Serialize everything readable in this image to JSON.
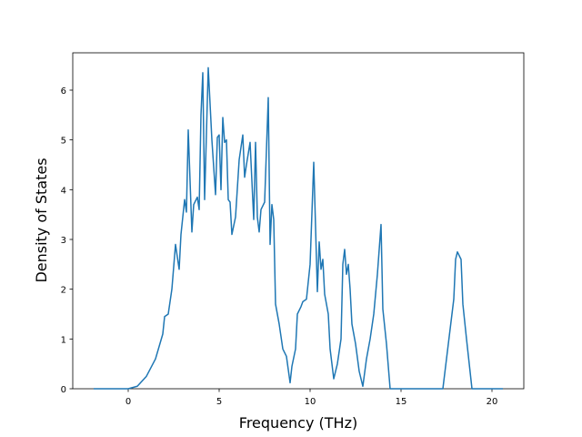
{
  "chart_data": {
    "type": "line",
    "xlabel": "Frequency (THz)",
    "ylabel": "Density of States",
    "x": [
      -1.9,
      0,
      0.5,
      1,
      1.5,
      1.9,
      2.0,
      2.2,
      2.4,
      2.6,
      2.8,
      2.9,
      3.1,
      3.2,
      3.3,
      3.5,
      3.6,
      3.8,
      3.9,
      4.0,
      4.1,
      4.2,
      4.4,
      4.6,
      4.8,
      4.9,
      5.0,
      5.1,
      5.2,
      5.3,
      5.4,
      5.5,
      5.6,
      5.7,
      5.9,
      6.1,
      6.3,
      6.4,
      6.5,
      6.7,
      6.9,
      7.0,
      7.1,
      7.2,
      7.3,
      7.5,
      7.7,
      7.8,
      7.9,
      8.0,
      8.1,
      8.3,
      8.5,
      8.7,
      8.9,
      9.0,
      9.2,
      9.3,
      9.5,
      9.6,
      9.8,
      10.0,
      10.2,
      10.4,
      10.5,
      10.6,
      10.7,
      10.8,
      11.0,
      11.1,
      11.3,
      11.5,
      11.7,
      11.8,
      11.9,
      12.0,
      12.1,
      12.2,
      12.3,
      12.5,
      12.7,
      12.9,
      13.1,
      13.3,
      13.5,
      13.7,
      13.9,
      14.0,
      14.2,
      14.4,
      17.3,
      17.5,
      17.7,
      17.9,
      18.0,
      18.1,
      18.3,
      18.4,
      18.6,
      18.9,
      20.6
    ],
    "values": [
      0,
      0,
      0.05,
      0.25,
      0.6,
      1.1,
      1.45,
      1.5,
      2.0,
      2.9,
      2.4,
      3.1,
      3.8,
      3.55,
      5.2,
      3.15,
      3.7,
      3.85,
      3.6,
      5.5,
      6.35,
      3.8,
      6.45,
      5.0,
      3.9,
      5.05,
      5.1,
      4.0,
      5.45,
      4.95,
      5.0,
      3.8,
      3.75,
      3.1,
      3.45,
      4.6,
      5.1,
      4.25,
      4.5,
      4.95,
      3.4,
      4.95,
      3.45,
      3.15,
      3.6,
      3.75,
      5.85,
      2.9,
      3.7,
      3.4,
      1.7,
      1.3,
      0.8,
      0.65,
      0.12,
      0.45,
      0.8,
      1.5,
      1.65,
      1.75,
      1.8,
      2.5,
      4.55,
      1.95,
      2.95,
      2.4,
      2.6,
      1.9,
      1.5,
      0.8,
      0.2,
      0.5,
      1.0,
      2.5,
      2.8,
      2.3,
      2.5,
      2.0,
      1.3,
      0.9,
      0.35,
      0.05,
      0.6,
      1.0,
      1.5,
      2.3,
      3.3,
      1.6,
      0.9,
      0,
      0,
      0.6,
      1.2,
      1.8,
      2.6,
      2.75,
      2.6,
      1.7,
      1.0,
      0,
      0
    ],
    "color": "#1f77b4",
    "xlim": [
      -3.05,
      21.75
    ],
    "ylim": [
      0,
      6.75
    ],
    "xticks": [
      0,
      5,
      10,
      15,
      20
    ],
    "yticks": [
      0,
      1,
      2,
      3,
      4,
      5,
      6
    ],
    "grid": false
  }
}
